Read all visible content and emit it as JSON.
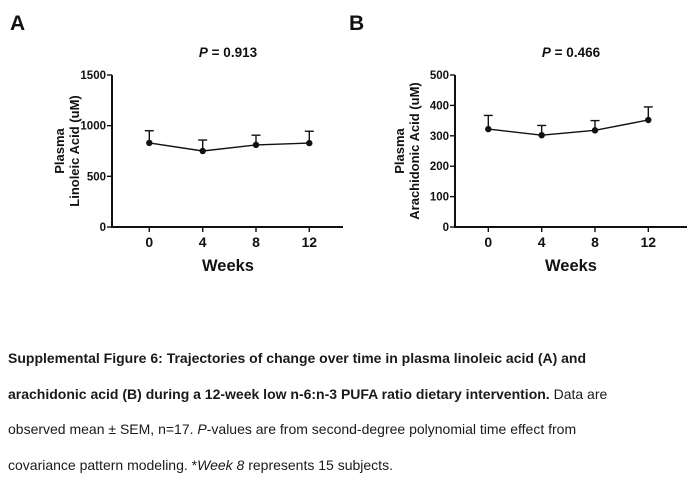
{
  "page": {
    "background": "#ffffff",
    "ink_color": "#111111"
  },
  "panels": [
    {
      "letter": "A"
    },
    {
      "letter": "B"
    }
  ],
  "chart_data": [
    {
      "type": "line",
      "title": "P = 0.913",
      "p_value": 0.913,
      "x": [
        0,
        4,
        8,
        12
      ],
      "series": [
        {
          "name": "Plasma Linoleic Acid mean",
          "values": [
            830,
            750,
            810,
            828
          ],
          "sem": [
            120,
            108,
            96,
            117
          ]
        }
      ],
      "error_bars": "mean + SEM, upper whisker with cap",
      "marker": "filled-circle",
      "xlabel": "Weeks",
      "ylabel": "Plasma Linoleic Acid (uM)",
      "ylabel_lines": [
        "Plasma",
        "Linoleic Acid (uM)"
      ],
      "ylim": [
        0,
        1500
      ],
      "yticks": [
        0,
        500,
        1000,
        1500
      ],
      "xticks": [
        0,
        4,
        8,
        12
      ],
      "grid": false,
      "legend": "none",
      "line_color": "#111111"
    },
    {
      "type": "line",
      "title": "P = 0.466",
      "p_value": 0.466,
      "x": [
        0,
        4,
        8,
        12
      ],
      "series": [
        {
          "name": "Plasma Arachidonic Acid mean",
          "values": [
            322,
            302,
            318,
            352
          ],
          "sem": [
            45,
            32,
            32,
            43
          ]
        }
      ],
      "error_bars": "mean + SEM, upper whisker with cap",
      "marker": "filled-circle",
      "xlabel": "Weeks",
      "ylabel": "Plasma Arachidonic Acid (uM)",
      "ylabel_lines": [
        "Plasma",
        "Arachidonic Acid (uM)"
      ],
      "ylim": [
        0,
        500
      ],
      "yticks": [
        0,
        100,
        200,
        300,
        400,
        500
      ],
      "xticks": [
        0,
        4,
        8,
        12
      ],
      "grid": false,
      "legend": "none",
      "line_color": "#111111"
    }
  ],
  "caption": {
    "lines": [
      [
        {
          "t": "Supplemental Figure 6: Trajectories of change over time in plasma linoleic acid (A) and",
          "b": true
        }
      ],
      [
        {
          "t": "arachidonic acid (B) during a 12-week low n-6:n-3 PUFA ratio dietary intervention.",
          "b": true
        },
        {
          "t": " Data are"
        }
      ],
      [
        {
          "t": "observed mean ± SEM, n=17. "
        },
        {
          "t": "P",
          "i": true
        },
        {
          "t": "-values are from second-degree polynomial time effect from"
        }
      ],
      [
        {
          "t": "covariance pattern modeling. *"
        },
        {
          "t": "Week 8",
          "i": true
        },
        {
          "t": " represents 15 subjects."
        }
      ]
    ]
  }
}
